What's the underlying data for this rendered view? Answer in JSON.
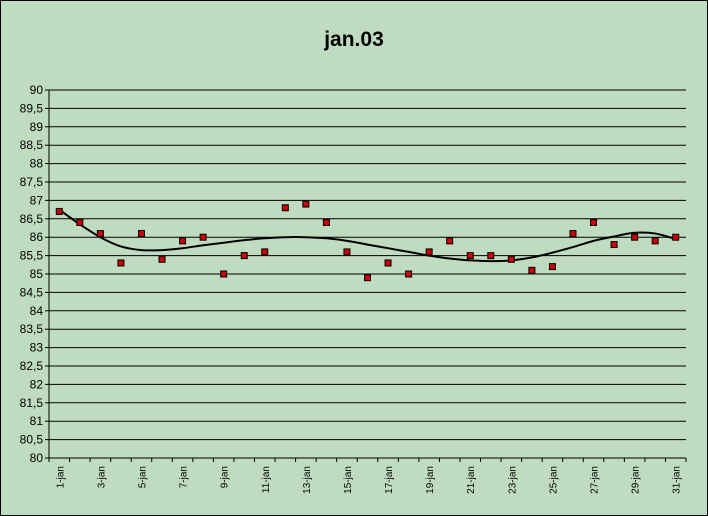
{
  "chart_data": {
    "type": "scatter",
    "title": "jan.03",
    "xlabel": "",
    "ylabel": "",
    "ylim": [
      80,
      90
    ],
    "ytick_step": 0.5,
    "ytick_labels": [
      "80",
      "80,5",
      "81",
      "81,5",
      "82",
      "82,5",
      "83",
      "83,5",
      "84",
      "84,5",
      "85",
      "85,5",
      "86",
      "86,5",
      "87",
      "87,5",
      "88",
      "88,5",
      "89",
      "89,5",
      "90"
    ],
    "categories": [
      "1-jan",
      "2-jan",
      "3-jan",
      "4-jan",
      "5-jan",
      "6-jan",
      "7-jan",
      "8-jan",
      "9-jan",
      "10-jan",
      "11-jan",
      "12-jan",
      "13-jan",
      "14-jan",
      "15-jan",
      "16-jan",
      "17-jan",
      "18-jan",
      "19-jan",
      "20-jan",
      "21-jan",
      "22-jan",
      "23-jan",
      "24-jan",
      "25-jan",
      "26-jan",
      "27-jan",
      "28-jan",
      "29-jan",
      "30-jan",
      "31-jan"
    ],
    "xtick_labels": [
      "1-jan",
      "3-jan",
      "5-jan",
      "7-jan",
      "9-jan",
      "11-jan",
      "13-jan",
      "15-jan",
      "17-jan",
      "19-jan",
      "21-jan",
      "23-jan",
      "25-jan",
      "27-jan",
      "29-jan",
      "31-jan"
    ],
    "values": [
      86.7,
      86.4,
      86.1,
      85.3,
      86.1,
      85.4,
      85.9,
      86.0,
      85.0,
      85.5,
      85.6,
      86.8,
      86.9,
      86.4,
      85.6,
      84.9,
      85.3,
      85.0,
      85.6,
      85.9,
      85.5,
      85.5,
      85.4,
      85.1,
      85.2,
      86.1,
      86.4,
      85.8,
      86.0,
      85.9,
      86.0
    ],
    "trendline_values": [
      86.75,
      86.35,
      86.0,
      85.75,
      85.65,
      85.65,
      85.7,
      85.78,
      85.85,
      85.92,
      85.97,
      86.0,
      86.0,
      85.97,
      85.9,
      85.8,
      85.7,
      85.6,
      85.5,
      85.42,
      85.37,
      85.35,
      85.37,
      85.45,
      85.58,
      85.73,
      85.9,
      86.02,
      86.12,
      86.1,
      85.95
    ],
    "grid": true,
    "marker_color": "#cc0000",
    "trendline_color": "#000000",
    "background_color": "#c0dcc0"
  }
}
